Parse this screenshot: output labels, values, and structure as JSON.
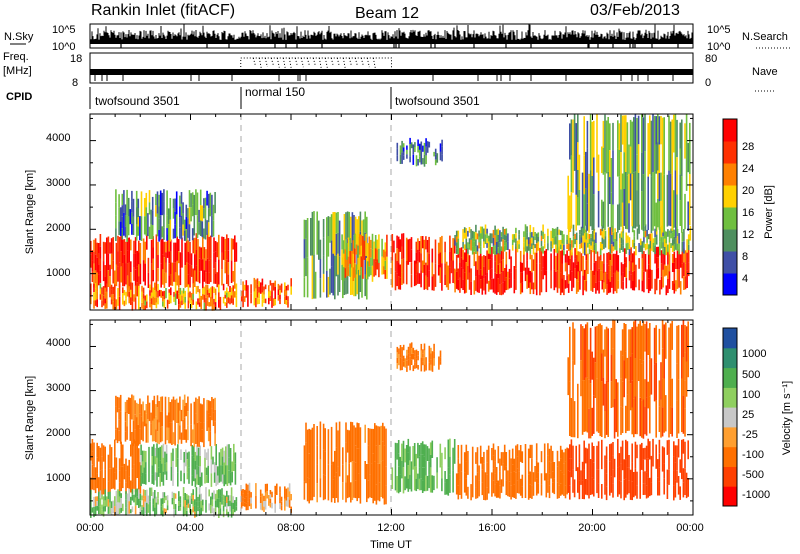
{
  "header": {
    "station": "Rankin Inlet (fitACF)",
    "beam": "Beam 12",
    "date": "03/Feb/2013"
  },
  "noise_panel": {
    "left_label": "N.Sky",
    "right_label": "N.Search",
    "left_ticks": [
      "10^5",
      "10^0"
    ],
    "right_ticks": [
      "10^5",
      "10^0"
    ]
  },
  "freq_panel": {
    "left_label_1": "Freq.",
    "left_label_2": "[MHz]",
    "right_label": "Nave",
    "left_ticks": [
      "18",
      "8"
    ],
    "right_ticks": [
      "80",
      "0"
    ]
  },
  "cpid": {
    "label": "CPID",
    "modes": [
      {
        "name": "twofsound 3501",
        "start_h": 0,
        "end_h": 6
      },
      {
        "name": "normal 150",
        "start_h": 6,
        "end_h": 12
      },
      {
        "name": "twofsound 3501",
        "start_h": 12,
        "end_h": 24
      }
    ]
  },
  "time_axis": {
    "label": "Time UT",
    "ticks": [
      "00:00",
      "04:00",
      "08:00",
      "12:00",
      "16:00",
      "20:00",
      "00:00"
    ]
  },
  "range_axis": {
    "label": "Slant Range [km]",
    "ticks": [
      "1000",
      "2000",
      "3000",
      "4000"
    ]
  },
  "colorbars": {
    "power": {
      "label": "Power [dB]",
      "ticks": [
        "28",
        "24",
        "20",
        "16",
        "12",
        "8",
        "4"
      ],
      "colors": [
        "#0000ff",
        "#3f4fa6",
        "#4f8f5f",
        "#6fbf3f",
        "#ffd000",
        "#ff8000",
        "#ff3000",
        "#ff0000"
      ]
    },
    "velocity": {
      "label": "Velocity [m s⁻¹]",
      "ticks": [
        "1000",
        "500",
        "100",
        "25",
        "-25",
        "-100",
        "-500",
        "-1000"
      ],
      "colors": [
        "#2050a0",
        "#2f8f6f",
        "#4faf4f",
        "#8fcf5f",
        "#c8c8c8",
        "#ff9f30",
        "#ff7000",
        "#ff4000",
        "#ff0000"
      ]
    }
  },
  "chart_data": [
    {
      "type": "heatmap",
      "title": "Power [dB]",
      "xlabel": "Time UT",
      "ylabel": "Slant Range [km]",
      "xlim_hours": [
        0,
        24
      ],
      "ylim_km": [
        180,
        4600
      ],
      "clim_db": [
        0,
        32
      ],
      "blobs": [
        {
          "t0": 0.0,
          "t1": 5.8,
          "r0": 750,
          "r1": 1800,
          "value": 28
        },
        {
          "t0": 0.0,
          "t1": 5.8,
          "r0": 250,
          "r1": 700,
          "value": 22
        },
        {
          "t0": 1.0,
          "t1": 5.0,
          "r0": 1800,
          "r1": 2800,
          "value": 10
        },
        {
          "t0": 6.0,
          "t1": 8.0,
          "r0": 300,
          "r1": 800,
          "value": 24
        },
        {
          "t0": 8.5,
          "t1": 11.0,
          "r0": 500,
          "r1": 2300,
          "value": 12
        },
        {
          "t0": 10.0,
          "t1": 11.8,
          "r0": 900,
          "r1": 1800,
          "value": 20
        },
        {
          "t0": 12.0,
          "t1": 14.5,
          "r0": 700,
          "r1": 1800,
          "value": 28
        },
        {
          "t0": 14.5,
          "t1": 23.9,
          "r0": 600,
          "r1": 1500,
          "value": 28
        },
        {
          "t0": 14.5,
          "t1": 23.9,
          "r0": 1500,
          "r1": 2000,
          "value": 14
        },
        {
          "t0": 12.2,
          "t1": 14.0,
          "r0": 3500,
          "r1": 4000,
          "value": 8
        },
        {
          "t0": 19.0,
          "t1": 23.9,
          "r0": 2000,
          "r1": 4500,
          "value": 12
        }
      ]
    },
    {
      "type": "heatmap",
      "title": "Velocity [m s⁻¹]",
      "xlabel": "Time UT",
      "ylabel": "Slant Range [km]",
      "xlim_hours": [
        0,
        24
      ],
      "ylim_km": [
        180,
        4600
      ],
      "clim_ms": [
        -1000,
        1000
      ],
      "blobs": [
        {
          "t0": 0.0,
          "t1": 2.0,
          "r0": 700,
          "r1": 1800,
          "value": -300
        },
        {
          "t0": 2.0,
          "t1": 5.8,
          "r0": 900,
          "r1": 1700,
          "value": 150
        },
        {
          "t0": 0.0,
          "t1": 5.8,
          "r0": 200,
          "r1": 700,
          "value": 120
        },
        {
          "t0": 1.0,
          "t1": 5.0,
          "r0": 1800,
          "r1": 2800,
          "value": -200
        },
        {
          "t0": 6.0,
          "t1": 8.0,
          "r0": 300,
          "r1": 800,
          "value": -150
        },
        {
          "t0": 8.5,
          "t1": 11.8,
          "r0": 500,
          "r1": 2200,
          "value": -250
        },
        {
          "t0": 12.0,
          "t1": 14.5,
          "r0": 700,
          "r1": 1800,
          "value": 200
        },
        {
          "t0": 14.5,
          "t1": 19.0,
          "r0": 600,
          "r1": 1700,
          "value": -300
        },
        {
          "t0": 19.0,
          "t1": 23.9,
          "r0": 600,
          "r1": 1800,
          "value": -700
        },
        {
          "t0": 12.2,
          "t1": 14.0,
          "r0": 3500,
          "r1": 4000,
          "value": -200
        },
        {
          "t0": 19.0,
          "t1": 23.9,
          "r0": 2000,
          "r1": 4500,
          "value": -400
        }
      ]
    }
  ]
}
